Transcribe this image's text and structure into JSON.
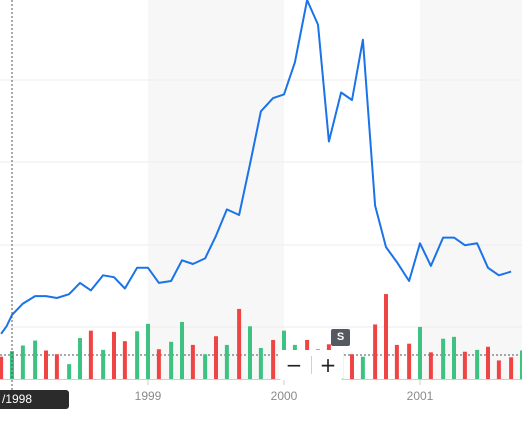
{
  "chart_data": {
    "type": "line",
    "title": "",
    "xlabel": "",
    "ylabel": "",
    "x_tick_labels": [
      "1999",
      "2000",
      "2001"
    ],
    "grid": true,
    "shaded_year_bands": [
      "1999",
      "2001"
    ],
    "price_series": {
      "color": "#1a73e8",
      "points": [
        [
          1997.92,
          3.8
        ],
        [
          1997.96,
          4.2
        ],
        [
          1998.0,
          4.8
        ],
        [
          1998.08,
          5.4
        ],
        [
          1998.17,
          5.8
        ],
        [
          1998.25,
          5.8
        ],
        [
          1998.33,
          5.7
        ],
        [
          1998.42,
          5.9
        ],
        [
          1998.5,
          6.5
        ],
        [
          1998.58,
          6.1
        ],
        [
          1998.67,
          6.9
        ],
        [
          1998.75,
          6.8
        ],
        [
          1998.83,
          6.2
        ],
        [
          1998.92,
          7.3
        ],
        [
          1999.0,
          7.3
        ],
        [
          1999.08,
          6.5
        ],
        [
          1999.17,
          6.6
        ],
        [
          1999.25,
          7.7
        ],
        [
          1999.33,
          7.5
        ],
        [
          1999.42,
          7.8
        ],
        [
          1999.5,
          9.0
        ],
        [
          1999.58,
          10.4
        ],
        [
          1999.67,
          10.1
        ],
        [
          1999.75,
          12.8
        ],
        [
          1999.83,
          15.6
        ],
        [
          1999.92,
          16.3
        ],
        [
          2000.0,
          16.5
        ],
        [
          2000.08,
          18.2
        ],
        [
          2000.17,
          21.5
        ],
        [
          2000.25,
          20.2
        ],
        [
          2000.33,
          14.0
        ],
        [
          2000.42,
          16.6
        ],
        [
          2000.5,
          16.2
        ],
        [
          2000.58,
          19.4
        ],
        [
          2000.67,
          10.6
        ],
        [
          2000.75,
          8.4
        ],
        [
          2000.83,
          7.6
        ],
        [
          2000.92,
          6.6
        ],
        [
          2001.0,
          8.6
        ],
        [
          2001.08,
          7.4
        ],
        [
          2001.17,
          8.9
        ],
        [
          2001.25,
          8.9
        ],
        [
          2001.33,
          8.5
        ],
        [
          2001.42,
          8.6
        ],
        [
          2001.5,
          7.3
        ],
        [
          2001.58,
          6.9
        ],
        [
          2001.67,
          7.1
        ]
      ]
    },
    "volume_bars": [
      {
        "x": 1997.92,
        "v": 36,
        "dir": "down"
      },
      {
        "x": 1998.0,
        "v": 45,
        "dir": "up"
      },
      {
        "x": 1998.08,
        "v": 54,
        "dir": "up"
      },
      {
        "x": 1998.17,
        "v": 62,
        "dir": "up"
      },
      {
        "x": 1998.25,
        "v": 46,
        "dir": "down"
      },
      {
        "x": 1998.33,
        "v": 40,
        "dir": "down"
      },
      {
        "x": 1998.42,
        "v": 24,
        "dir": "up"
      },
      {
        "x": 1998.5,
        "v": 66,
        "dir": "up"
      },
      {
        "x": 1998.58,
        "v": 78,
        "dir": "down"
      },
      {
        "x": 1998.67,
        "v": 47,
        "dir": "up"
      },
      {
        "x": 1998.75,
        "v": 76,
        "dir": "down"
      },
      {
        "x": 1998.83,
        "v": 61,
        "dir": "down"
      },
      {
        "x": 1998.92,
        "v": 77,
        "dir": "up"
      },
      {
        "x": 1999.0,
        "v": 89,
        "dir": "up"
      },
      {
        "x": 1999.08,
        "v": 48,
        "dir": "down"
      },
      {
        "x": 1999.17,
        "v": 60,
        "dir": "up"
      },
      {
        "x": 1999.25,
        "v": 92,
        "dir": "up"
      },
      {
        "x": 1999.33,
        "v": 55,
        "dir": "down"
      },
      {
        "x": 1999.42,
        "v": 40,
        "dir": "up"
      },
      {
        "x": 1999.5,
        "v": 69,
        "dir": "down"
      },
      {
        "x": 1999.58,
        "v": 55,
        "dir": "up"
      },
      {
        "x": 1999.67,
        "v": 113,
        "dir": "down"
      },
      {
        "x": 1999.75,
        "v": 85,
        "dir": "up"
      },
      {
        "x": 1999.83,
        "v": 50,
        "dir": "up"
      },
      {
        "x": 1999.92,
        "v": 63,
        "dir": "down"
      },
      {
        "x": 2000.0,
        "v": 78,
        "dir": "up"
      },
      {
        "x": 2000.08,
        "v": 55,
        "dir": "up"
      },
      {
        "x": 2000.17,
        "v": 63,
        "dir": "down"
      },
      {
        "x": 2000.25,
        "v": 48,
        "dir": "up"
      },
      {
        "x": 2000.33,
        "v": 56,
        "dir": "down"
      },
      {
        "x": 2000.42,
        "v": 44,
        "dir": "up"
      },
      {
        "x": 2000.5,
        "v": 40,
        "dir": "down"
      },
      {
        "x": 2000.58,
        "v": 36,
        "dir": "up"
      },
      {
        "x": 2000.67,
        "v": 88,
        "dir": "down"
      },
      {
        "x": 2000.75,
        "v": 137,
        "dir": "down"
      },
      {
        "x": 2000.83,
        "v": 55,
        "dir": "down"
      },
      {
        "x": 2000.92,
        "v": 57,
        "dir": "down"
      },
      {
        "x": 2001.0,
        "v": 84,
        "dir": "up"
      },
      {
        "x": 2001.08,
        "v": 43,
        "dir": "down"
      },
      {
        "x": 2001.17,
        "v": 65,
        "dir": "up"
      },
      {
        "x": 2001.25,
        "v": 68,
        "dir": "up"
      },
      {
        "x": 2001.33,
        "v": 44,
        "dir": "down"
      },
      {
        "x": 2001.42,
        "v": 47,
        "dir": "up"
      },
      {
        "x": 2001.5,
        "v": 52,
        "dir": "down"
      },
      {
        "x": 2001.58,
        "v": 30,
        "dir": "down"
      },
      {
        "x": 2001.67,
        "v": 35,
        "dir": "down"
      },
      {
        "x": 2001.75,
        "v": 46,
        "dir": "up"
      }
    ],
    "colors": {
      "up": "#3dc282",
      "down": "#ef4444",
      "line": "#1a73e8"
    }
  },
  "cursor_label": "/1998",
  "badge_label": "S",
  "zoom": {
    "minus": "−",
    "plus": "+"
  }
}
